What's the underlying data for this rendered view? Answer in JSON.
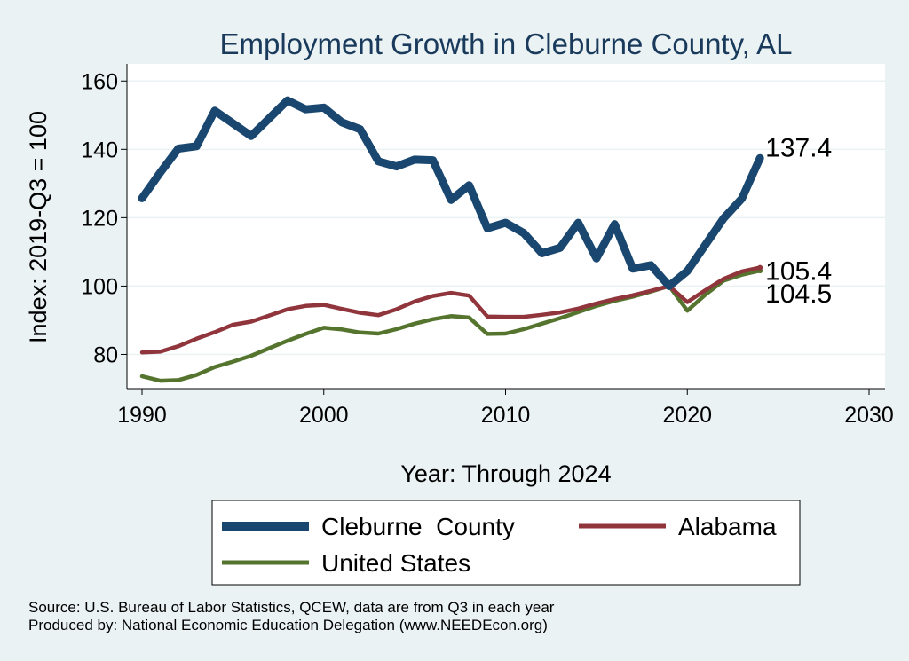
{
  "chart_data": {
    "type": "line",
    "title": "Employment Growth in Cleburne County, AL",
    "xlabel": "Year: Through 2024",
    "ylabel": "Index: 2019-Q3 = 100",
    "xlim": [
      1990,
      2030
    ],
    "ylim": [
      70,
      165
    ],
    "xticks": [
      1990,
      2000,
      2010,
      2020,
      2030
    ],
    "yticks": [
      80,
      100,
      120,
      140,
      160
    ],
    "grid": true,
    "legend_position": "bottom",
    "x": [
      1990,
      1991,
      1992,
      1993,
      1994,
      1995,
      1996,
      1997,
      1998,
      1999,
      2000,
      2001,
      2002,
      2003,
      2004,
      2005,
      2006,
      2007,
      2008,
      2009,
      2010,
      2011,
      2012,
      2013,
      2014,
      2015,
      2016,
      2017,
      2018,
      2019,
      2020,
      2021,
      2022,
      2023,
      2024
    ],
    "series": [
      {
        "name": "Cleburne  County",
        "color": "#1a476f",
        "end_label": "137.4",
        "values": [
          125.7,
          133.2,
          140.2,
          140.9,
          151.3,
          147.6,
          143.9,
          149.1,
          154.3,
          151.7,
          152.2,
          147.9,
          145.9,
          136.5,
          135.0,
          137.0,
          136.8,
          125.2,
          129.5,
          116.9,
          118.5,
          115.5,
          109.6,
          111.2,
          118.5,
          108.1,
          118.1,
          105.1,
          106.1,
          100.0,
          104.4,
          112.1,
          119.8,
          125.6,
          137.4
        ]
      },
      {
        "name": "Alabama",
        "color": "#90353b",
        "end_label": "105.4",
        "values": [
          80.6,
          80.8,
          82.4,
          84.6,
          86.5,
          88.7,
          89.6,
          91.4,
          93.2,
          94.2,
          94.5,
          93.3,
          92.2,
          91.5,
          93.2,
          95.5,
          97.1,
          98.0,
          97.2,
          91.1,
          91.0,
          91.0,
          91.6,
          92.3,
          93.4,
          94.9,
          96.2,
          97.3,
          98.6,
          100.0,
          95.3,
          98.8,
          102.1,
          104.3,
          105.4
        ]
      },
      {
        "name": "United States",
        "color": "#55752f",
        "end_label": "104.5",
        "values": [
          73.6,
          72.3,
          72.5,
          74.0,
          76.3,
          77.9,
          79.6,
          81.8,
          84.0,
          86.0,
          87.8,
          87.3,
          86.4,
          86.1,
          87.4,
          89.0,
          90.3,
          91.2,
          90.8,
          86.0,
          86.1,
          87.4,
          89.0,
          90.6,
          92.4,
          94.2,
          95.7,
          96.9,
          98.4,
          100.0,
          92.8,
          97.5,
          101.6,
          103.3,
          104.5
        ]
      }
    ],
    "notes": [
      "Source: U.S. Bureau of Labor Statistics, QCEW, data are from Q3 in each year",
      "Produced by: National Economic Education Delegation (www.NEEDEcon.org)"
    ]
  }
}
